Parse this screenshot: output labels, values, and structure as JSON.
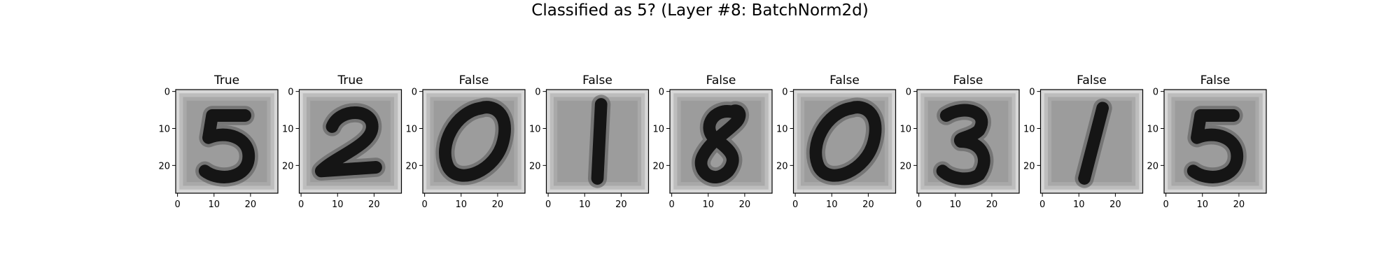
{
  "figure": {
    "title": "Classified as 5? (Layer #8: BatchNorm2d)"
  },
  "chart_data": {
    "type": "image_grid",
    "title": "Classified as 5? (Layer #8: BatchNorm2d)",
    "image_size": [
      28,
      28
    ],
    "x_ticks": [
      0,
      10,
      20
    ],
    "y_ticks": [
      0,
      10,
      20
    ],
    "colormap": "gray",
    "panels": [
      {
        "title": "True",
        "digit": "5"
      },
      {
        "title": "True",
        "digit": "2"
      },
      {
        "title": "False",
        "digit": "0"
      },
      {
        "title": "False",
        "digit": "1"
      },
      {
        "title": "False",
        "digit": "8"
      },
      {
        "title": "False",
        "digit": "0"
      },
      {
        "title": "False",
        "digit": "3"
      },
      {
        "title": "False",
        "digit": "1"
      },
      {
        "title": "False",
        "digit": "5"
      }
    ]
  },
  "colors": {
    "background_gray": "#a9a9a9",
    "inner_gray": "#9c9c9c",
    "border_light": "#d8d8d8",
    "stroke_dark": "#151515",
    "axis": "#000000"
  }
}
